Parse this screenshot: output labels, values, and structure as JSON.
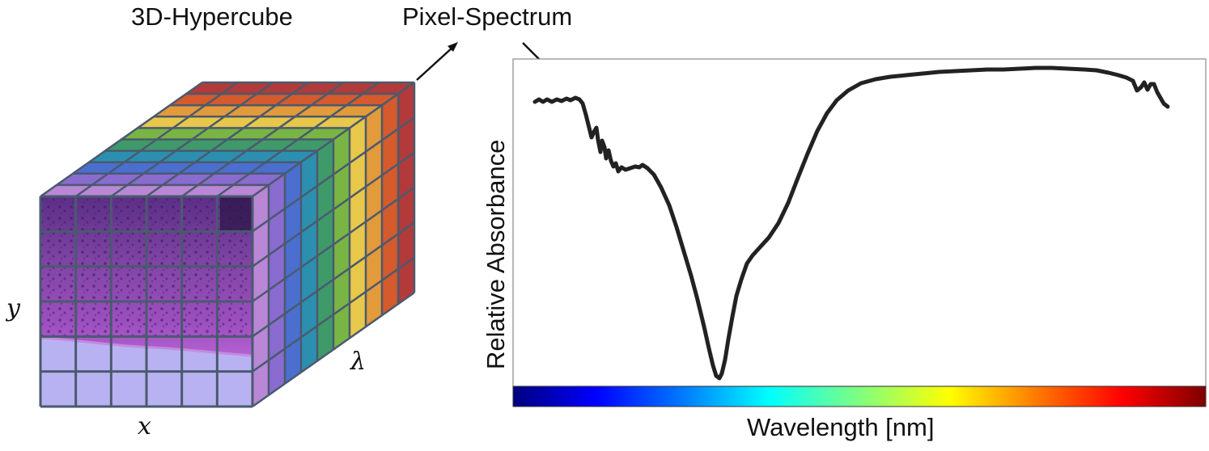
{
  "cube_title": "3D-Hypercube",
  "spectrum_title": "Pixel-Spectrum",
  "axes": {
    "x": "x",
    "y": "y",
    "lambda": "λ"
  },
  "plot": {
    "ylabel": "Relative Absorbance",
    "xlabel": "Wavelength [nm]",
    "colorbar_stops": [
      "#00007f",
      "#0000ff",
      "#007fff",
      "#00ffff",
      "#7fff7f",
      "#ffff00",
      "#ff7f00",
      "#ff0000",
      "#7f0000"
    ]
  },
  "cube_layer_colors": [
    "#b23a3a",
    "#d55a2c",
    "#e39a3a",
    "#e8c84a",
    "#79b545",
    "#3f9a6a",
    "#2d8fb0",
    "#4a6fcf",
    "#8a6bcf",
    "#b987d6"
  ],
  "grid_color": "#4a5a6e",
  "curve_color": "#222222"
}
